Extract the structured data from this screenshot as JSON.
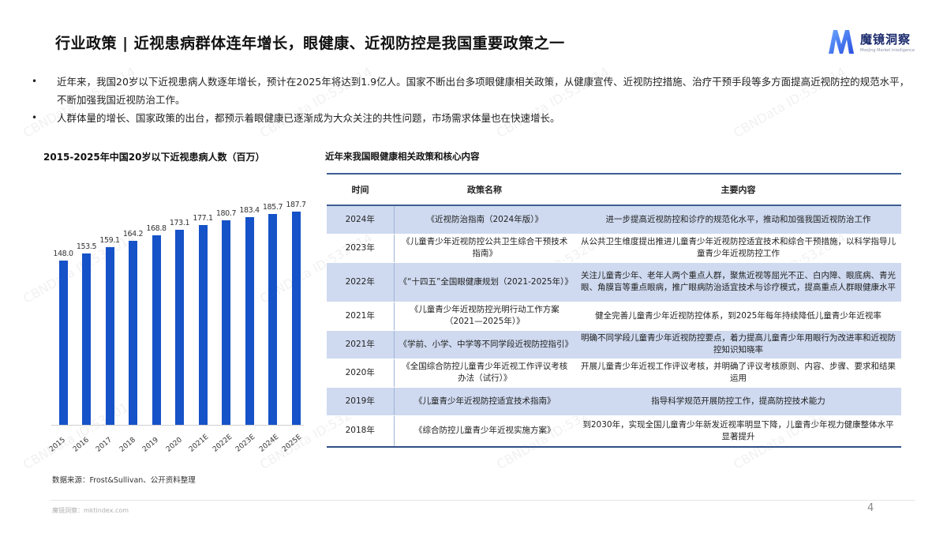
{
  "header": {
    "title": "行业政策 | 近视患病群体连年增长，眼健康、近视防控是我国重要政策之一",
    "logo_cn": "魔镜洞察",
    "logo_en": "Moojing Market Intelligence"
  },
  "bullets": [
    "近年来，我国20岁以下近视患病人数逐年增长，预计在2025年将达到1.9亿人。国家不断出台多项眼健康相关政策，从健康宣传、近视防控措施、治疗干预手段等多方面提高近视防控的规范水平，不断加强我国近视防治工作。",
    "人群体量的增长、国家政策的出台，都预示着眼健康已逐渐成为大众关注的共性问题，市场需求体量也在快速增长。"
  ],
  "chart_data": {
    "type": "bar",
    "title": "2015-2025年中国20岁以下近视患病人数（百万）",
    "categories": [
      "2015",
      "2016",
      "2017",
      "2018",
      "2019",
      "2020",
      "2021E",
      "2022E",
      "2023E",
      "2024E",
      "2025E"
    ],
    "values": [
      148.0,
      153.5,
      159.1,
      164.2,
      168.8,
      173.1,
      177.1,
      180.7,
      183.4,
      185.7,
      187.7
    ],
    "value_labels": [
      "148.0",
      "153.5",
      "159.1",
      "164.2",
      "168.8",
      "173.1",
      "177.1",
      "180.7",
      "183.4",
      "185.7",
      "187.7"
    ],
    "xlabel": "",
    "ylabel": "百万",
    "color": "#1652c8",
    "grid": false,
    "legend": "none"
  },
  "chart_source": "数据来源：Frost&Sullivan、公开资料整理",
  "policy_table": {
    "title": "近年来我国眼健康相关政策和核心内容",
    "headers": [
      "时间",
      "政策名称",
      "主要内容"
    ],
    "rows": [
      {
        "year": "2024年",
        "name": "《近视防治指南（2024年版）》",
        "content": "进一步提高近视防控和诊疗的规范化水平，推动和加强我国近视防治工作"
      },
      {
        "year": "2023年",
        "name": "《儿童青少年近视防控公共卫生综合干预技术指南》",
        "content": "从公共卫生维度提出推进儿童青少年近视防控适宜技术和综合干预措施，以科学指导儿童青少年近视防控工作"
      },
      {
        "year": "2022年",
        "name": "《“十四五”全国眼健康规划（2021-2025年）》",
        "content": "关注儿童青少年、老年人两个重点人群，聚焦近视等屈光不正、白内障、眼底病、青光眼、角膜盲等重点眼病，推广眼病防治适宜技术与诊疗模式，提高重点人群眼健康水平"
      },
      {
        "year": "2021年",
        "name": "《儿童青少年近视防控光明行动工作方案（2021—2025年）》",
        "content": "健全完善儿童青少年近视防控体系，到2025年每年持续降低儿童青少年近视率"
      },
      {
        "year": "2021年",
        "name": "《学前、小学、中学等不同学段近视防控指引》",
        "content": "明确不同学段儿童青少年近视防控要点，着力提高儿童青少年用眼行为改进率和近视防控知识知晓率"
      },
      {
        "year": "2020年",
        "name": "《全国综合防控儿童青少年近视工作评议考核办法（试行）》",
        "content": "开展儿童青少年近视工作评议考核，并明确了评议考核原则、内容、步骤、要求和结果运用"
      },
      {
        "year": "2019年",
        "name": "《儿童青少年近视防控适宜技术指南》",
        "content": "指导科学规范开展防控工作，提高防控技术能力"
      },
      {
        "year": "2018年",
        "name": "《综合防控儿童青少年近视实施方案》",
        "content": "到2030年，实现全国儿童青少年新发近视率明显下降，儿童青少年视力健康整体水平显著提升"
      }
    ]
  },
  "footer": {
    "site": "魔镜洞察：mktindex.com",
    "page": "4"
  },
  "watermark": "CBNData ID:532014"
}
